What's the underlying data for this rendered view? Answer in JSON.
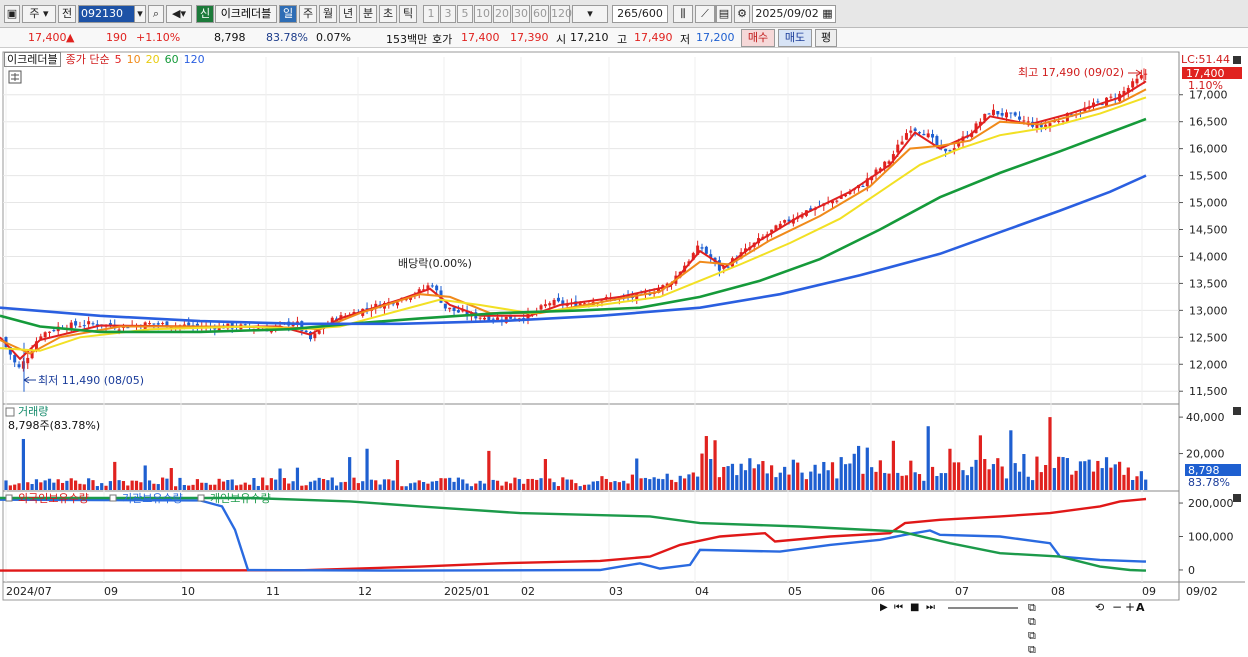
{
  "toolbar": {
    "market": "주",
    "prev": "전",
    "code": "092130",
    "tag_new": "신",
    "name": "이크레더블",
    "periods": [
      "일",
      "주",
      "월",
      "년",
      "분",
      "초",
      "틱"
    ],
    "active_period": "일",
    "minutes": [
      "1",
      "3",
      "5",
      "10",
      "20",
      "30",
      "60",
      "120"
    ],
    "count": "265",
    "count_max": "/600",
    "date": "2025/09/02"
  },
  "quote": {
    "price": "17,400",
    "arrow": "▲",
    "change": "190",
    "change_pct": "+1.10%",
    "volume": "8,798",
    "vol_ratio": "83.78%",
    "turnover": "0.07%",
    "amount": "153백만",
    "hoga_label": "호가",
    "ask": "17,400",
    "bid": "17,390",
    "open_label": "시",
    "open": "17,210",
    "high_label": "고",
    "high": "17,490",
    "low_label": "저",
    "low": "17,200",
    "buy": "매수",
    "sell": "매도",
    "eval": "평"
  },
  "price_header": {
    "name": "이크레더블",
    "ma_label": "종가 단순",
    "periods": [
      "5",
      "10",
      "20",
      "60",
      "120"
    ]
  },
  "price_axis": {
    "ticks": [
      "17,000",
      "16,500",
      "16,000",
      "15,500",
      "15,000",
      "14,500",
      "14,000",
      "13,500",
      "13,000",
      "12,500",
      "12,000",
      "11,500"
    ],
    "lc": "LC:51.44",
    "last": "17,400",
    "last_pct": "1.10%"
  },
  "annotations": {
    "high": "최고 17,490 (09/02)",
    "low": "최저 11,490 (08/05)",
    "dividend": "배당락(0.00%)"
  },
  "volume_panel": {
    "title": "거래량",
    "current": "8,798주(83.78%)",
    "ticks": [
      "40,000",
      "20,000"
    ],
    "last": "8,798",
    "last_pct": "83.78%"
  },
  "holdings_panel": {
    "series": [
      "외국인보유수량",
      "기관보유수량",
      "개인보유수량"
    ],
    "ticks": [
      "200,000",
      "100,000",
      "0"
    ]
  },
  "x_axis": {
    "labels": [
      "2024/07",
      "09",
      "10",
      "11",
      "12",
      "2025/01",
      "02",
      "03",
      "04",
      "05",
      "06",
      "07",
      "08",
      "09"
    ],
    "end": "09/02"
  },
  "colors": {
    "up": "#e0221f",
    "down": "#1e5fd0",
    "ma5": "#e02020",
    "ma10": "#f08a1a",
    "ma20": "#f2e024",
    "ma60": "#159a3a",
    "ma120": "#2a5fe0",
    "foreign": "#e01818",
    "institution": "#2a6ae0",
    "individual": "#1c9a4a"
  },
  "chart_data": [
    {
      "type": "candlestick",
      "title": "이크레더블",
      "ylim": [
        11300,
        17700
      ],
      "y_ticks": [
        17000,
        16500,
        16000,
        15500,
        15000,
        14500,
        14000,
        13500,
        13000,
        12500,
        12000,
        11500
      ],
      "x_labels": [
        "2024/07",
        "09",
        "10",
        "11",
        "12",
        "2025/01",
        "02",
        "03",
        "04",
        "05",
        "06",
        "07",
        "08",
        "09"
      ],
      "close_path": [
        [
          0,
          12500
        ],
        [
          10,
          12200
        ],
        [
          18,
          11900
        ],
        [
          26,
          12100
        ],
        [
          40,
          12550
        ],
        [
          60,
          12700
        ],
        [
          90,
          12750
        ],
        [
          120,
          12700
        ],
        [
          150,
          12750
        ],
        [
          180,
          12720
        ],
        [
          210,
          12700
        ],
        [
          240,
          12700
        ],
        [
          270,
          12650
        ],
        [
          295,
          12800
        ],
        [
          310,
          12450
        ],
        [
          330,
          12800
        ],
        [
          360,
          13000
        ],
        [
          390,
          13150
        ],
        [
          420,
          13350
        ],
        [
          432,
          13500
        ],
        [
          445,
          13050
        ],
        [
          470,
          12900
        ],
        [
          500,
          12850
        ],
        [
          530,
          12900
        ],
        [
          550,
          13150
        ],
        [
          570,
          13100
        ],
        [
          600,
          13200
        ],
        [
          640,
          13250
        ],
        [
          670,
          13500
        ],
        [
          700,
          14200
        ],
        [
          720,
          13750
        ],
        [
          745,
          14100
        ],
        [
          770,
          14450
        ],
        [
          800,
          14800
        ],
        [
          830,
          15000
        ],
        [
          860,
          15300
        ],
        [
          890,
          15800
        ],
        [
          910,
          16400
        ],
        [
          925,
          16300
        ],
        [
          945,
          15900
        ],
        [
          970,
          16300
        ],
        [
          990,
          16700
        ],
        [
          1010,
          16600
        ],
        [
          1040,
          16400
        ],
        [
          1060,
          16550
        ],
        [
          1080,
          16700
        ],
        [
          1100,
          16850
        ],
        [
          1120,
          17000
        ],
        [
          1146,
          17400
        ]
      ],
      "ma": [
        {
          "name": "5",
          "points": [
            [
              0,
              12500
            ],
            [
              20,
              12100
            ],
            [
              40,
              12450
            ],
            [
              100,
              12720
            ],
            [
              200,
              12700
            ],
            [
              280,
              12700
            ],
            [
              310,
              12550
            ],
            [
              340,
              12850
            ],
            [
              400,
              13200
            ],
            [
              430,
              13400
            ],
            [
              450,
              13100
            ],
            [
              480,
              12900
            ],
            [
              530,
              12900
            ],
            [
              560,
              13100
            ],
            [
              620,
              13250
            ],
            [
              670,
              13450
            ],
            [
              700,
              14100
            ],
            [
              725,
              13800
            ],
            [
              760,
              14300
            ],
            [
              800,
              14750
            ],
            [
              850,
              15200
            ],
            [
              890,
              15700
            ],
            [
              915,
              16300
            ],
            [
              940,
              16000
            ],
            [
              970,
              16250
            ],
            [
              990,
              16600
            ],
            [
              1030,
              16450
            ],
            [
              1070,
              16650
            ],
            [
              1120,
              16950
            ],
            [
              1146,
              17250
            ]
          ]
        },
        {
          "name": "10",
          "points": [
            [
              0,
              12450
            ],
            [
              30,
              12200
            ],
            [
              60,
              12500
            ],
            [
              120,
              12700
            ],
            [
              220,
              12700
            ],
            [
              290,
              12680
            ],
            [
              320,
              12650
            ],
            [
              360,
              12950
            ],
            [
              420,
              13300
            ],
            [
              450,
              13250
            ],
            [
              490,
              12950
            ],
            [
              540,
              12950
            ],
            [
              600,
              13150
            ],
            [
              660,
              13350
            ],
            [
              700,
              13900
            ],
            [
              730,
              13850
            ],
            [
              770,
              14300
            ],
            [
              820,
              14750
            ],
            [
              870,
              15300
            ],
            [
              910,
              16000
            ],
            [
              940,
              16050
            ],
            [
              970,
              16150
            ],
            [
              1000,
              16500
            ],
            [
              1040,
              16450
            ],
            [
              1080,
              16650
            ],
            [
              1120,
              16850
            ],
            [
              1146,
              17100
            ]
          ]
        },
        {
          "name": "20",
          "points": [
            [
              0,
              12300
            ],
            [
              40,
              12250
            ],
            [
              80,
              12500
            ],
            [
              150,
              12650
            ],
            [
              250,
              12700
            ],
            [
              300,
              12650
            ],
            [
              340,
              12700
            ],
            [
              400,
              13000
            ],
            [
              440,
              13200
            ],
            [
              480,
              13100
            ],
            [
              530,
              12950
            ],
            [
              600,
              13100
            ],
            [
              660,
              13250
            ],
            [
              700,
              13550
            ],
            [
              740,
              13850
            ],
            [
              790,
              14250
            ],
            [
              840,
              14700
            ],
            [
              880,
              15200
            ],
            [
              920,
              15700
            ],
            [
              960,
              16000
            ],
            [
              1000,
              16250
            ],
            [
              1050,
              16400
            ],
            [
              1100,
              16650
            ],
            [
              1146,
              16950
            ]
          ]
        },
        {
          "name": "60",
          "points": [
            [
              0,
              12900
            ],
            [
              40,
              12700
            ],
            [
              100,
              12600
            ],
            [
              200,
              12600
            ],
            [
              290,
              12650
            ],
            [
              350,
              12750
            ],
            [
              420,
              12850
            ],
            [
              500,
              12950
            ],
            [
              580,
              13000
            ],
            [
              640,
              13050
            ],
            [
              700,
              13250
            ],
            [
              760,
              13550
            ],
            [
              820,
              13950
            ],
            [
              880,
              14500
            ],
            [
              940,
              15100
            ],
            [
              1000,
              15550
            ],
            [
              1060,
              15950
            ],
            [
              1110,
              16300
            ],
            [
              1146,
              16550
            ]
          ]
        },
        {
          "name": "120",
          "points": [
            [
              0,
              13050
            ],
            [
              100,
              12900
            ],
            [
              200,
              12800
            ],
            [
              300,
              12750
            ],
            [
              400,
              12750
            ],
            [
              500,
              12800
            ],
            [
              600,
              12900
            ],
            [
              700,
              13050
            ],
            [
              780,
              13300
            ],
            [
              860,
              13650
            ],
            [
              940,
              14050
            ],
            [
              1000,
              14450
            ],
            [
              1060,
              14850
            ],
            [
              1110,
              15200
            ],
            [
              1146,
              15500
            ]
          ]
        }
      ],
      "high_marker": {
        "label": "최고 17,490 (09/02)",
        "value": 17490
      },
      "low_marker": {
        "label": "최저 11,490 (08/05)",
        "value": 11490
      },
      "dividend_marker": {
        "label": "배당락(0.00%)",
        "value": 13560
      }
    },
    {
      "type": "bar",
      "title": "거래량",
      "ylim": [
        0,
        45000
      ],
      "y_ticks": [
        40000,
        20000
      ],
      "last": 8798,
      "spikes": [
        [
          23,
          28000
        ],
        [
          930,
          35000
        ],
        [
          1050,
          40000
        ],
        [
          980,
          30000
        ],
        [
          895,
          27000
        ],
        [
          1105,
          18000
        ],
        [
          545,
          17000
        ],
        [
          700,
          20000
        ]
      ]
    },
    {
      "type": "line",
      "title": "보유수량",
      "ylim": [
        -30000,
        230000
      ],
      "y_ticks": [
        200000,
        100000,
        0
      ],
      "series": [
        {
          "name": "외국인보유수량",
          "points": [
            [
              0,
              -2000
            ],
            [
              300,
              -1000
            ],
            [
              420,
              10000
            ],
            [
              500,
              20000
            ],
            [
              600,
              27000
            ],
            [
              650,
              40000
            ],
            [
              680,
              75000
            ],
            [
              720,
              100000
            ],
            [
              765,
              110000
            ],
            [
              775,
              85000
            ],
            [
              830,
              100000
            ],
            [
              890,
              110000
            ],
            [
              905,
              140000
            ],
            [
              940,
              150000
            ],
            [
              1000,
              160000
            ],
            [
              1050,
              170000
            ],
            [
              1100,
              190000
            ],
            [
              1120,
              205000
            ],
            [
              1146,
              212000
            ]
          ]
        },
        {
          "name": "기관보유수량",
          "points": [
            [
              0,
              210000
            ],
            [
              200,
              208000
            ],
            [
              222,
              190000
            ],
            [
              235,
              120000
            ],
            [
              248,
              0
            ],
            [
              400,
              -2000
            ],
            [
              600,
              0
            ],
            [
              640,
              20000
            ],
            [
              660,
              4000
            ],
            [
              690,
              15000
            ],
            [
              700,
              60000
            ],
            [
              780,
              55000
            ],
            [
              830,
              75000
            ],
            [
              880,
              90000
            ],
            [
              905,
              105000
            ],
            [
              930,
              118000
            ],
            [
              940,
              105000
            ],
            [
              1000,
              100000
            ],
            [
              1050,
              80000
            ],
            [
              1060,
              40000
            ],
            [
              1100,
              30000
            ],
            [
              1146,
              25000
            ]
          ]
        },
        {
          "name": "개인보유수량",
          "points": [
            [
              0,
              215000
            ],
            [
              250,
              215000
            ],
            [
              350,
              205000
            ],
            [
              420,
              190000
            ],
            [
              520,
              170000
            ],
            [
              650,
              160000
            ],
            [
              700,
              140000
            ],
            [
              800,
              130000
            ],
            [
              900,
              115000
            ],
            [
              950,
              80000
            ],
            [
              1000,
              50000
            ],
            [
              1060,
              40000
            ],
            [
              1100,
              10000
            ],
            [
              1130,
              0
            ],
            [
              1146,
              -2000
            ]
          ]
        }
      ]
    }
  ]
}
